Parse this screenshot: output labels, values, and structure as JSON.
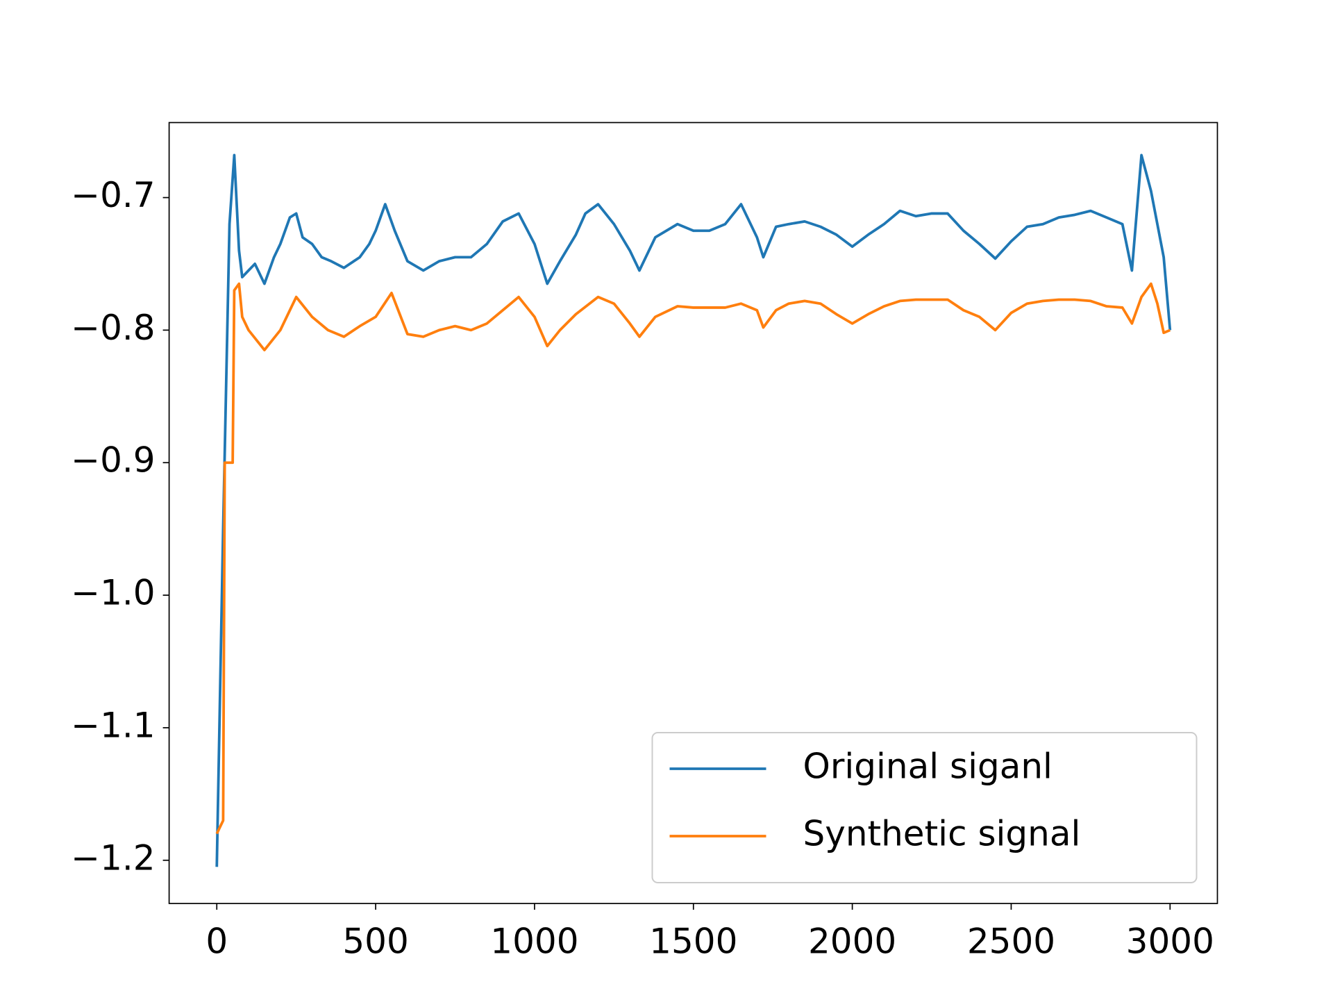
{
  "chart_data": {
    "type": "line",
    "xlim": [
      -150,
      3149
    ],
    "xticks": [
      0,
      500,
      1000,
      1500,
      2000,
      2500,
      3000
    ],
    "ylim": [
      -1.2326,
      -0.6434
    ],
    "yticks": [
      {
        "value": -1.2,
        "label": "−1.2"
      },
      {
        "value": -1.1,
        "label": "−1.1"
      },
      {
        "value": -1.0,
        "label": "−1.0"
      },
      {
        "value": -0.9,
        "label": "−0.9"
      },
      {
        "value": -0.8,
        "label": "−0.8"
      },
      {
        "value": -0.7,
        "label": "−0.7"
      }
    ],
    "legend": "lower right",
    "series": [
      {
        "name": "Original siganl",
        "color": "#1f77b4",
        "x": [
          0,
          20,
          40,
          55,
          70,
          80,
          100,
          120,
          150,
          180,
          200,
          230,
          250,
          270,
          300,
          330,
          360,
          400,
          450,
          480,
          500,
          530,
          560,
          600,
          650,
          700,
          750,
          800,
          850,
          900,
          950,
          1000,
          1040,
          1080,
          1130,
          1160,
          1200,
          1250,
          1300,
          1330,
          1380,
          1450,
          1500,
          1550,
          1600,
          1650,
          1700,
          1720,
          1760,
          1800,
          1850,
          1900,
          1950,
          2000,
          2050,
          2100,
          2150,
          2200,
          2250,
          2300,
          2350,
          2400,
          2450,
          2500,
          2550,
          2600,
          2650,
          2700,
          2750,
          2800,
          2850,
          2880,
          2910,
          2940,
          2960,
          2980,
          3000
        ],
        "values": [
          -1.205,
          -0.95,
          -0.72,
          -0.668,
          -0.74,
          -0.76,
          -0.755,
          -0.75,
          -0.765,
          -0.745,
          -0.735,
          -0.715,
          -0.712,
          -0.73,
          -0.735,
          -0.745,
          -0.748,
          -0.753,
          -0.745,
          -0.735,
          -0.725,
          -0.705,
          -0.725,
          -0.748,
          -0.755,
          -0.748,
          -0.745,
          -0.745,
          -0.735,
          -0.718,
          -0.712,
          -0.735,
          -0.765,
          -0.748,
          -0.728,
          -0.712,
          -0.705,
          -0.72,
          -0.74,
          -0.755,
          -0.73,
          -0.72,
          -0.725,
          -0.725,
          -0.72,
          -0.705,
          -0.73,
          -0.745,
          -0.722,
          -0.72,
          -0.718,
          -0.722,
          -0.728,
          -0.737,
          -0.728,
          -0.72,
          -0.71,
          -0.714,
          -0.712,
          -0.712,
          -0.725,
          -0.735,
          -0.746,
          -0.733,
          -0.722,
          -0.72,
          -0.715,
          -0.713,
          -0.71,
          -0.715,
          -0.72,
          -0.755,
          -0.668,
          -0.695,
          -0.72,
          -0.745,
          -0.8
        ]
      },
      {
        "name": "Synthetic signal",
        "color": "#ff7f0e",
        "x": [
          0,
          20,
          25,
          50,
          55,
          70,
          80,
          100,
          150,
          200,
          250,
          300,
          350,
          400,
          450,
          500,
          550,
          600,
          650,
          700,
          750,
          800,
          850,
          900,
          950,
          1000,
          1040,
          1080,
          1130,
          1200,
          1250,
          1300,
          1330,
          1380,
          1450,
          1500,
          1550,
          1600,
          1650,
          1700,
          1720,
          1760,
          1800,
          1850,
          1900,
          1950,
          2000,
          2050,
          2100,
          2150,
          2200,
          2250,
          2300,
          2350,
          2400,
          2450,
          2500,
          2550,
          2600,
          2650,
          2700,
          2750,
          2800,
          2850,
          2880,
          2910,
          2940,
          2960,
          2980,
          3000
        ],
        "values": [
          -1.18,
          -1.17,
          -0.9,
          -0.9,
          -0.77,
          -0.765,
          -0.79,
          -0.8,
          -0.815,
          -0.8,
          -0.775,
          -0.79,
          -0.8,
          -0.805,
          -0.797,
          -0.79,
          -0.772,
          -0.803,
          -0.805,
          -0.8,
          -0.797,
          -0.8,
          -0.795,
          -0.785,
          -0.775,
          -0.79,
          -0.812,
          -0.8,
          -0.788,
          -0.775,
          -0.78,
          -0.795,
          -0.805,
          -0.79,
          -0.782,
          -0.783,
          -0.783,
          -0.783,
          -0.78,
          -0.785,
          -0.798,
          -0.785,
          -0.78,
          -0.778,
          -0.78,
          -0.788,
          -0.795,
          -0.788,
          -0.782,
          -0.778,
          -0.777,
          -0.777,
          -0.777,
          -0.785,
          -0.79,
          -0.8,
          -0.787,
          -0.78,
          -0.778,
          -0.777,
          -0.777,
          -0.778,
          -0.782,
          -0.783,
          -0.795,
          -0.775,
          -0.765,
          -0.78,
          -0.802,
          -0.8
        ]
      }
    ]
  }
}
